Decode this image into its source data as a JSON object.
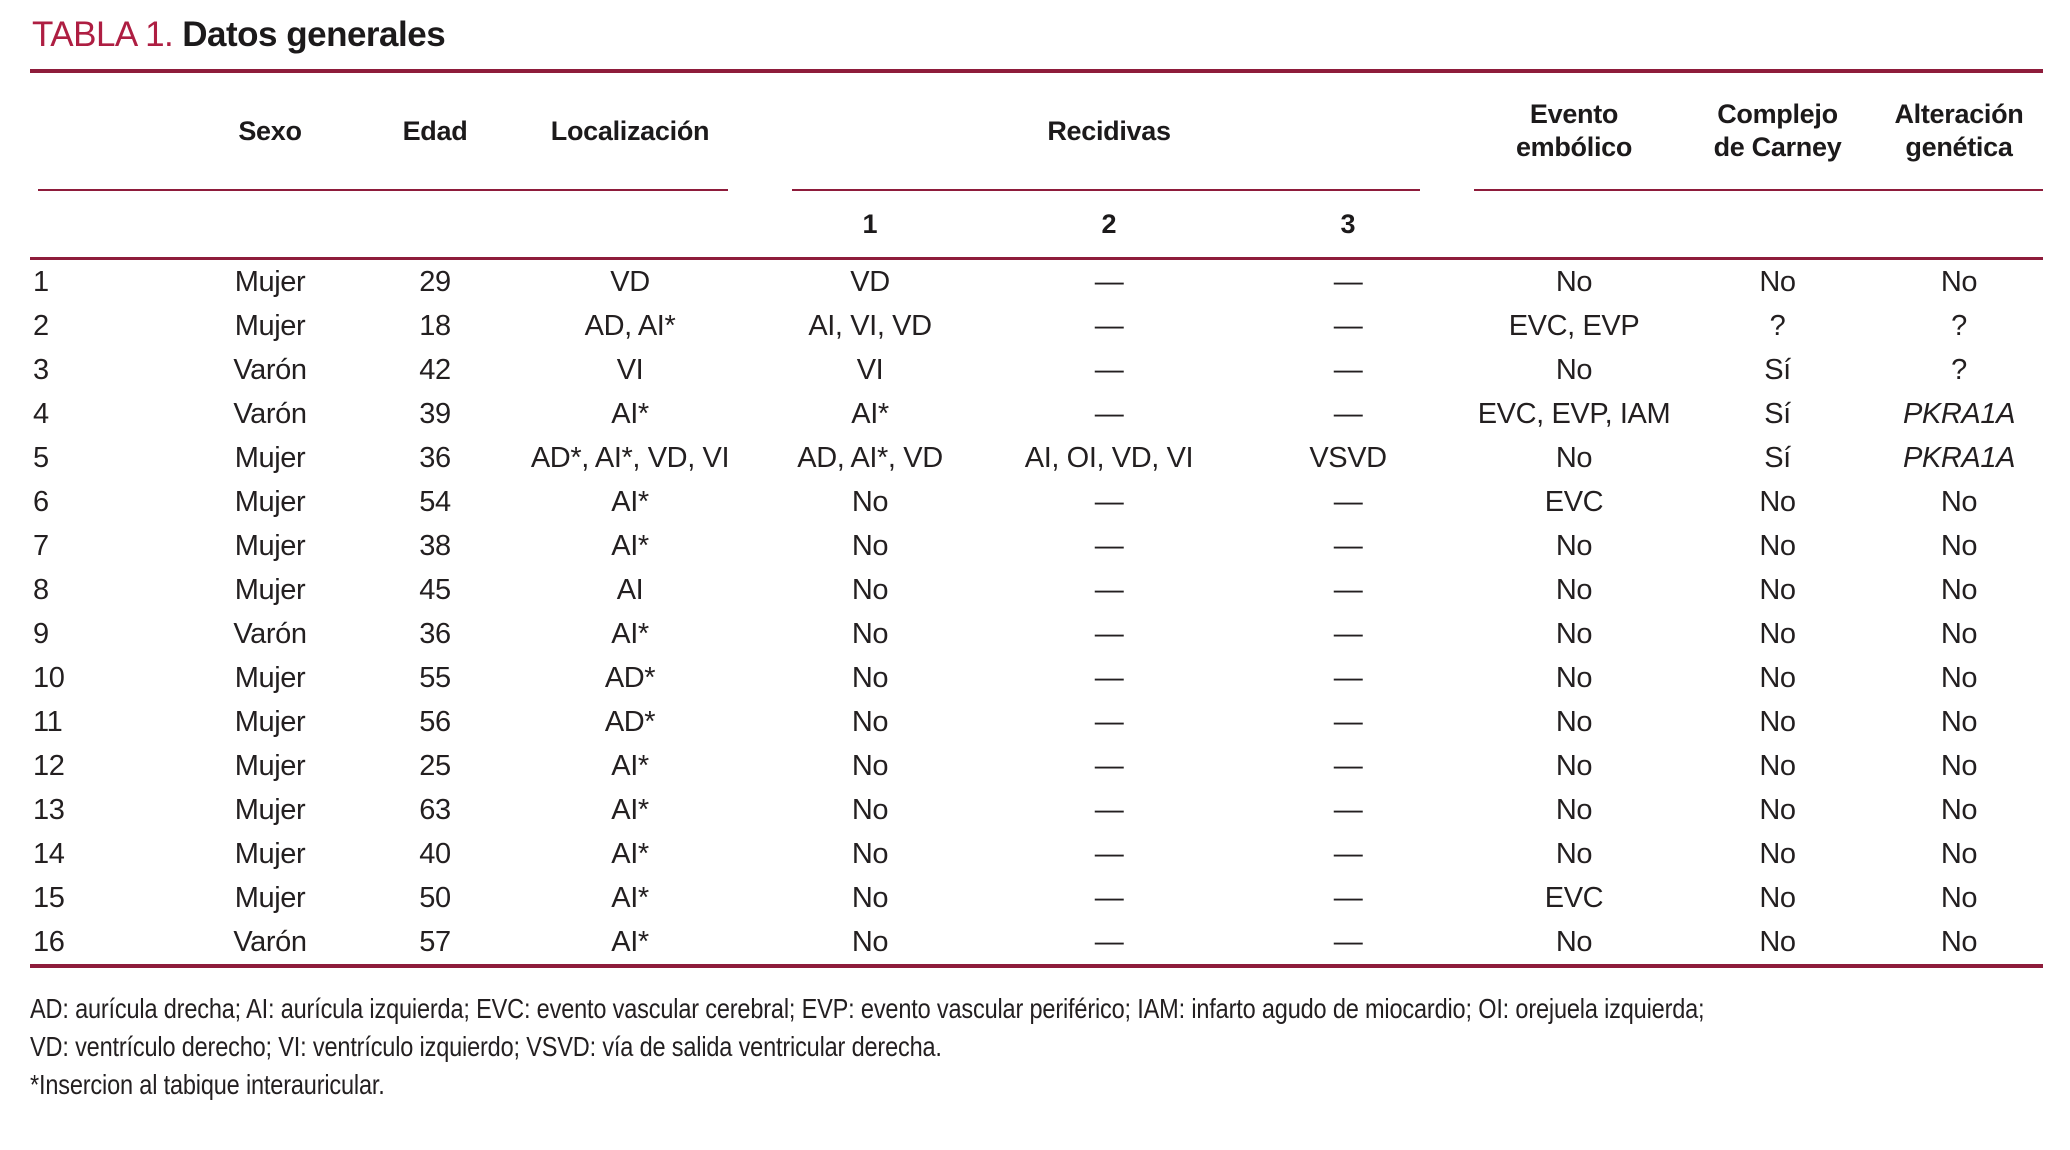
{
  "title": {
    "label": "TABLA 1.",
    "text": "Datos generales"
  },
  "colors": {
    "accent_rule": "#8E1C3B",
    "accent_title": "#AE1E42",
    "ink": "#231F20"
  },
  "table": {
    "header": {
      "corner": "",
      "sexo": "Sexo",
      "edad": "Edad",
      "localizacion": "Localización",
      "recidivas": "Recidivas",
      "recidivas_sub": [
        "1",
        "2",
        "3"
      ],
      "evento_l1": "Evento",
      "evento_l2": "embólico",
      "complejo_l1": "Complejo",
      "complejo_l2": "de Carney",
      "alteracion_l1": "Alteración",
      "alteracion_l2": "genética"
    },
    "rows": [
      [
        "1",
        "Mujer",
        "29",
        "VD",
        "VD",
        "—",
        "—",
        "No",
        "No",
        "No"
      ],
      [
        "2",
        "Mujer",
        "18",
        "AD, AI*",
        "AI, VI, VD",
        "—",
        "—",
        "EVC, EVP",
        "?",
        "?"
      ],
      [
        "3",
        "Varón",
        "42",
        "VI",
        "VI",
        "—",
        "—",
        "No",
        "Sí",
        "?"
      ],
      [
        "4",
        "Varón",
        "39",
        "AI*",
        "AI*",
        "—",
        "—",
        "EVC, EVP, IAM",
        "Sí",
        {
          "text": "PKRA1A",
          "italic": true
        }
      ],
      [
        "5",
        "Mujer",
        "36",
        "AD*, AI*, VD, VI",
        "AD, AI*, VD",
        "AI, OI, VD, VI",
        "VSVD",
        "No",
        "Sí",
        {
          "text": "PKRA1A",
          "italic": true
        }
      ],
      [
        "6",
        "Mujer",
        "54",
        "AI*",
        "No",
        "—",
        "—",
        "EVC",
        "No",
        "No"
      ],
      [
        "7",
        "Mujer",
        "38",
        "AI*",
        "No",
        "—",
        "—",
        "No",
        "No",
        "No"
      ],
      [
        "8",
        "Mujer",
        "45",
        "AI",
        "No",
        "—",
        "—",
        "No",
        "No",
        "No"
      ],
      [
        "9",
        "Varón",
        "36",
        "AI*",
        "No",
        "—",
        "—",
        "No",
        "No",
        "No"
      ],
      [
        "10",
        "Mujer",
        "55",
        "AD*",
        "No",
        "—",
        "—",
        "No",
        "No",
        "No"
      ],
      [
        "11",
        "Mujer",
        "56",
        "AD*",
        "No",
        "—",
        "—",
        "No",
        "No",
        "No"
      ],
      [
        "12",
        "Mujer",
        "25",
        "AI*",
        "No",
        "—",
        "—",
        "No",
        "No",
        "No"
      ],
      [
        "13",
        "Mujer",
        "63",
        "AI*",
        "No",
        "—",
        "—",
        "No",
        "No",
        "No"
      ],
      [
        "14",
        "Mujer",
        "40",
        "AI*",
        "No",
        "—",
        "—",
        "No",
        "No",
        "No"
      ],
      [
        "15",
        "Mujer",
        "50",
        "AI*",
        "No",
        "—",
        "—",
        "EVC",
        "No",
        "No"
      ],
      [
        "16",
        "Varón",
        "57",
        "AI*",
        "No",
        "—",
        "—",
        "No",
        "No",
        "No"
      ]
    ]
  },
  "footnotes": [
    "AD: aurícula drecha; AI: aurícula izquierda; EVC: evento vascular cerebral; EVP: evento vascular periférico; IAM: infarto agudo de miocardio; OI: orejuela izquierda;",
    "VD: ventrículo derecho; VI: ventrículo izquierdo; VSVD: vía de salida ventricular derecha.",
    "*Insercion al tabique interauricular."
  ]
}
